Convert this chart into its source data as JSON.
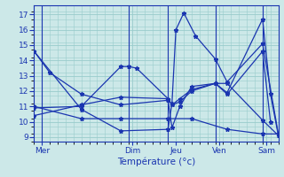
{
  "background_color": "#cce8e8",
  "grid_color": "#99cccc",
  "line_color": "#1a35b0",
  "marker": "*",
  "xlabel": "Température (°c)",
  "xlim": [
    0,
    31
  ],
  "ylim": [
    8.7,
    17.6
  ],
  "yticks": [
    9,
    10,
    11,
    12,
    13,
    14,
    15,
    16,
    17
  ],
  "day_tick_positions": [
    1,
    12.5,
    18,
    23.5,
    29.5
  ],
  "day_labels": [
    "Mer",
    "Dim",
    "Jeu",
    "Ven",
    "Sam"
  ],
  "vline_positions": [
    1,
    12,
    17,
    23,
    29
  ],
  "series": [
    [
      0,
      14.6,
      2,
      13.2,
      6,
      11.8,
      11,
      11.1,
      17,
      11.4,
      17.5,
      9.6,
      18.5,
      11.0,
      20,
      12.3,
      23,
      12.5,
      24.5,
      12.5,
      29,
      10.1,
      31,
      9.1
    ],
    [
      0,
      14.6,
      6,
      10.8,
      11,
      9.4,
      17,
      9.5,
      17.5,
      11.2,
      18,
      16.0,
      19,
      17.1,
      20.5,
      15.6,
      23,
      14.1,
      24.5,
      12.6,
      29,
      15.1,
      31,
      9.2
    ],
    [
      0,
      10.9,
      6,
      11.0,
      11,
      13.6,
      12,
      13.6,
      13,
      13.5,
      17,
      11.5,
      17.5,
      11.1,
      18.5,
      11.5,
      20,
      12.1,
      23,
      12.5,
      24.5,
      11.8,
      29,
      14.6,
      30,
      10.0
    ],
    [
      0,
      10.4,
      6,
      11.1,
      11,
      11.6,
      17,
      11.5,
      17.5,
      11.1,
      18.5,
      11.3,
      20,
      12.0,
      23,
      12.5,
      24.5,
      11.9,
      29,
      16.7,
      30,
      11.8,
      31,
      9.1
    ],
    [
      0,
      11.0,
      6,
      10.2,
      11,
      10.2,
      17,
      10.2,
      20,
      10.2,
      24.5,
      9.5,
      29,
      9.2,
      31,
      9.2
    ]
  ]
}
